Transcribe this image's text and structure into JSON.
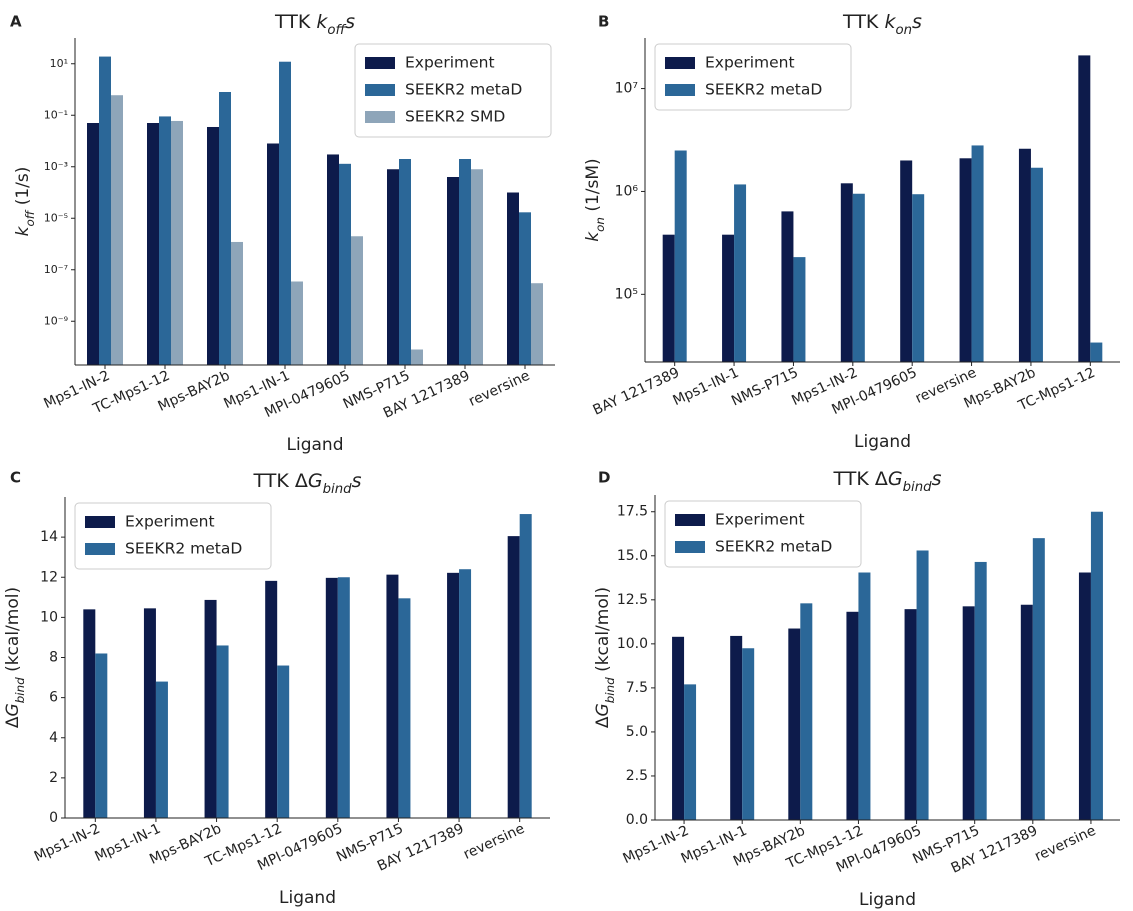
{
  "chart_data": [
    {
      "type": "bar",
      "panel": "A",
      "title": [
        "TTK ",
        "k",
        "off",
        "s"
      ],
      "ylabel": [
        "k",
        "off",
        " (1/s)"
      ],
      "xlabel": "Ligand",
      "log_scale": true,
      "legend": "upper right",
      "categories": [
        "Mps1-IN-2",
        "TC-Mps1-12",
        "Mps-BAY2b",
        "Mps1-IN-1",
        "MPI-0479605",
        "NMS-P715",
        "BAY 1217389",
        "reversine"
      ],
      "series": [
        {
          "name": "Experiment",
          "color": "#0d1b4b",
          "values": [
            0.05,
            0.05,
            0.035,
            0.008,
            0.003,
            0.0008,
            0.0004,
            0.0001
          ]
        },
        {
          "name": "SEEKR2 metaD",
          "color": "#2b6798",
          "values": [
            19,
            0.09,
            0.8,
            12,
            0.0013,
            0.002,
            0.002,
            1.7e-05
          ]
        },
        {
          "name": "SEEKR2 SMD",
          "color": "#8ea5b9",
          "values": [
            0.6,
            0.06,
            1.2e-06,
            3.5e-08,
            2e-06,
            8e-11,
            0.0008,
            3e-08
          ]
        }
      ],
      "ylim": [
        2e-11,
        100
      ],
      "yticks": [
        {
          "value": 10,
          "label": "10¹"
        },
        {
          "value": 0.1,
          "label": "10⁻¹"
        },
        {
          "value": 0.001,
          "label": "10⁻³"
        },
        {
          "value": 1e-05,
          "label": "10⁻⁵"
        },
        {
          "value": 1e-07,
          "label": "10⁻⁷"
        },
        {
          "value": 1e-09,
          "label": "10⁻⁹"
        }
      ]
    },
    {
      "type": "bar",
      "panel": "B",
      "title": [
        "TTK ",
        "k",
        "on",
        "s"
      ],
      "ylabel": [
        "k",
        "on",
        " (1/sM)"
      ],
      "xlabel": "Ligand",
      "log_scale": true,
      "legend": "upper left",
      "categories": [
        "BAY 1217389",
        "Mps1-IN-1",
        "NMS-P715",
        "Mps1-IN-2",
        "MPI-0479605",
        "reversine",
        "Mps-BAY2b",
        "TC-Mps1-12"
      ],
      "series": [
        {
          "name": "Experiment",
          "color": "#0d1b4b",
          "values": [
            380000,
            380000,
            640000,
            1200000,
            2000000,
            2100000,
            2600000,
            21000000
          ]
        },
        {
          "name": "SEEKR2 metaD",
          "color": "#2b6798",
          "values": [
            2500000,
            1170000,
            230000,
            950000,
            940000,
            2800000,
            1700000,
            34000
          ]
        }
      ],
      "ylim": [
        22000,
        31000000
      ],
      "yticks": [
        {
          "value": 100000,
          "label": "10⁵"
        },
        {
          "value": 1000000,
          "label": "10⁶"
        },
        {
          "value": 10000000,
          "label": "10⁷"
        }
      ]
    },
    {
      "type": "bar",
      "panel": "C",
      "title": [
        "TTK Δ",
        "G",
        "bind",
        "s"
      ],
      "ylabel": [
        "Δ",
        "G",
        "bind",
        " (kcal/mol)"
      ],
      "xlabel": "Ligand",
      "log_scale": false,
      "legend": "upper left",
      "categories": [
        "Mps1-IN-2",
        "Mps1-IN-1",
        "Mps-BAY2b",
        "TC-Mps1-12",
        "MPI-0479605",
        "NMS-P715",
        "BAY 1217389",
        "reversine"
      ],
      "series": [
        {
          "name": "Experiment",
          "color": "#0d1b4b",
          "values": [
            10.4,
            10.45,
            10.87,
            11.82,
            11.97,
            12.13,
            12.22,
            14.05
          ]
        },
        {
          "name": "SEEKR2 metaD",
          "color": "#2b6798",
          "values": [
            8.2,
            6.8,
            8.6,
            7.6,
            12.0,
            10.95,
            12.4,
            15.15
          ]
        }
      ],
      "ylim": [
        0,
        16
      ],
      "yticks": [
        0,
        2,
        4,
        6,
        8,
        10,
        12,
        14
      ]
    },
    {
      "type": "bar",
      "panel": "D",
      "title": [
        "TTK Δ",
        "G",
        "bind",
        "s"
      ],
      "ylabel": [
        "Δ",
        "G",
        "bind",
        " (kcal/mol)"
      ],
      "xlabel": "Ligand",
      "log_scale": false,
      "legend": "upper left",
      "categories": [
        "Mps1-IN-2",
        "Mps1-IN-1",
        "Mps-BAY2b",
        "TC-Mps1-12",
        "MPI-0479605",
        "NMS-P715",
        "BAY 1217389",
        "reversine"
      ],
      "series": [
        {
          "name": "Experiment",
          "color": "#0d1b4b",
          "values": [
            10.4,
            10.45,
            10.87,
            11.82,
            11.97,
            12.13,
            12.22,
            14.05
          ]
        },
        {
          "name": "SEEKR2 metaD",
          "color": "#2b6798",
          "values": [
            7.7,
            9.75,
            12.3,
            14.05,
            15.3,
            14.65,
            16.0,
            17.5
          ]
        }
      ],
      "ylim": [
        0,
        18.45
      ],
      "yticks": [
        {
          "value": 0,
          "label": "0.0"
        },
        {
          "value": 2.5,
          "label": "2.5"
        },
        {
          "value": 5,
          "label": "5.0"
        },
        7.5,
        {
          "value": 10,
          "label": "10.0"
        },
        12.5,
        {
          "value": 15,
          "label": "15.0"
        },
        17.5
      ]
    }
  ]
}
